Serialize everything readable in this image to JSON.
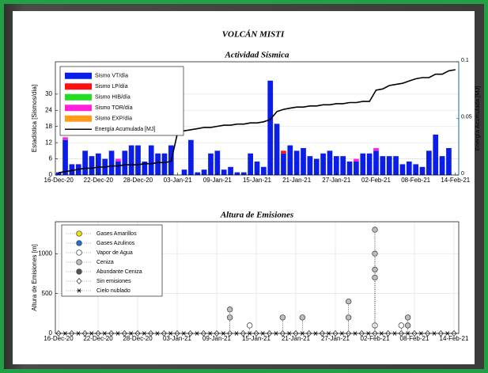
{
  "title": "VOLCÁN MISTI",
  "chart_data": [
    {
      "type": "bar",
      "stacked": true,
      "title": "Actividad Sísmica",
      "ylabel": "Estadística [Sismos/día]",
      "y2label": "Energía Acumulada [MJ]",
      "categories": [
        "16-Dec-20",
        null,
        null,
        null,
        null,
        null,
        "22-Dec-20",
        null,
        null,
        null,
        null,
        null,
        "28-Dec-20",
        null,
        null,
        null,
        null,
        null,
        "03-Jan-21",
        null,
        null,
        null,
        null,
        null,
        "09-Jan-21",
        null,
        null,
        null,
        null,
        null,
        "15-Jan-21",
        null,
        null,
        null,
        null,
        null,
        "21-Jan-21",
        null,
        null,
        null,
        null,
        null,
        "27-Jan-21",
        null,
        null,
        null,
        null,
        null,
        "02-Feb-21",
        null,
        null,
        null,
        null,
        null,
        "08-Feb-21",
        null,
        null,
        null,
        null,
        null,
        "14-Feb-21"
      ],
      "ylim": [
        0,
        42
      ],
      "yticks": [
        0,
        6,
        12,
        18,
        24,
        30
      ],
      "y2lim": [
        0,
        0.1
      ],
      "y2ticks": [
        0,
        0.05,
        0.1
      ],
      "y2color": "#0072bd",
      "grid": true,
      "legend": "upper left",
      "series": [
        {
          "name": "Sismo VT/día",
          "color": "#0a1ee8",
          "values": [
            1,
            13,
            4,
            4,
            9,
            7,
            8,
            6,
            9,
            5,
            9,
            11,
            11,
            5,
            11,
            8,
            8,
            11,
            0,
            2,
            13,
            1,
            2,
            8,
            9,
            2,
            3,
            1,
            1,
            8,
            5,
            3,
            35,
            19,
            8,
            11,
            9,
            10,
            7,
            6,
            8,
            9,
            7,
            7,
            5,
            5,
            8,
            8,
            9,
            7,
            7,
            7,
            4,
            5,
            4,
            3,
            9,
            15,
            7,
            10,
            0
          ]
        },
        {
          "name": "Sismo LP/día",
          "color": "#ff1010",
          "values": [
            0,
            0,
            0,
            0,
            0,
            0,
            0,
            0,
            0,
            0,
            0,
            0,
            0,
            0,
            0,
            0,
            0,
            0,
            0,
            0,
            0,
            0,
            0,
            0,
            0,
            0,
            0,
            0,
            0,
            0,
            0,
            0,
            0,
            0,
            1,
            0,
            0,
            0,
            0,
            0,
            0,
            0,
            0,
            0,
            0,
            0,
            0,
            0,
            0,
            0,
            0,
            0,
            0,
            0,
            0,
            0,
            0,
            0,
            0,
            0,
            0
          ]
        },
        {
          "name": "Sismo HIB/día",
          "color": "#22dd22",
          "values": [
            0,
            0,
            0,
            0,
            0,
            0,
            0,
            0,
            0,
            0,
            0,
            0,
            0,
            0,
            0,
            0,
            0,
            0,
            0,
            0,
            0,
            0,
            0,
            0,
            0,
            0,
            0,
            0,
            0,
            0,
            0,
            0,
            0,
            0,
            0,
            0,
            0,
            0,
            0,
            0,
            0,
            0,
            0,
            0,
            0,
            0,
            0,
            0,
            0,
            0,
            0,
            0,
            0,
            0,
            0,
            0,
            0,
            0,
            0,
            0,
            0
          ]
        },
        {
          "name": "Sismo TOR/día",
          "color": "#ff22dd",
          "values": [
            0,
            1,
            0,
            0,
            0,
            0,
            0,
            0,
            0,
            1,
            0,
            0,
            0,
            0,
            0,
            0,
            0,
            0,
            0,
            0,
            0,
            0,
            0,
            0,
            0,
            0,
            0,
            0,
            0,
            0,
            0,
            0,
            0,
            0,
            0,
            0,
            0,
            0,
            0,
            0,
            0,
            0,
            0,
            0,
            0,
            1,
            0,
            0,
            1,
            0,
            0,
            0,
            0,
            0,
            0,
            0,
            0,
            0,
            0,
            0,
            0
          ]
        },
        {
          "name": "Sismo EXP/día",
          "color": "#ff9a1a",
          "values": [
            0,
            0,
            0,
            0,
            0,
            0,
            0,
            0,
            0,
            0,
            0,
            0,
            0,
            0,
            0,
            0,
            0,
            0,
            0,
            0,
            0,
            0,
            0,
            0,
            0,
            0,
            0,
            0,
            0,
            0,
            0,
            0,
            0,
            0,
            0,
            0,
            0,
            0,
            0,
            0,
            0,
            0,
            0,
            0,
            0,
            0,
            0,
            0,
            0,
            0,
            0,
            0,
            0,
            0,
            0,
            0,
            0,
            0,
            0,
            0,
            0
          ]
        },
        {
          "name": "Energía Acumulada [MJ]",
          "color": "#000000",
          "axis": "y2",
          "values": [
            0.002,
            0.003,
            0.004,
            0.005,
            0.006,
            0.006,
            0.007,
            0.007,
            0.008,
            0.008,
            0.009,
            0.009,
            0.009,
            0.01,
            0.01,
            0.011,
            0.011,
            0.012,
            0.038,
            0.039,
            0.04,
            0.041,
            0.042,
            0.042,
            0.043,
            0.044,
            0.044,
            0.045,
            0.045,
            0.046,
            0.046,
            0.047,
            0.049,
            0.056,
            0.058,
            0.059,
            0.06,
            0.06,
            0.061,
            0.061,
            0.062,
            0.062,
            0.063,
            0.063,
            0.064,
            0.064,
            0.065,
            0.065,
            0.075,
            0.076,
            0.079,
            0.08,
            0.081,
            0.083,
            0.085,
            0.086,
            0.086,
            0.089,
            0.089,
            0.092,
            0.093
          ]
        }
      ]
    },
    {
      "type": "scatter",
      "title": "Altura de Emisiones",
      "ylabel": "Altura de Emisiones [m]",
      "xlim": [
        "16-Dec-20",
        "14-Feb-21"
      ],
      "xticks": [
        "16-Dec-20",
        "22-Dec-20",
        "28-Dec-20",
        "03-Jan-21",
        "09-Jan-21",
        "15-Jan-21",
        "21-Jan-21",
        "27-Jan-21",
        "02-Feb-21",
        "08-Feb-21",
        "14-Feb-21"
      ],
      "ylim": [
        0,
        1400
      ],
      "yticks": [
        0,
        500,
        1000
      ],
      "grid": true,
      "legend": "upper left",
      "series": [
        {
          "name": "Gases Amarillos",
          "color": "#f5e400",
          "marker": "o",
          "x": [],
          "values": []
        },
        {
          "name": "Gases Azulinos",
          "color": "#1f6fd6",
          "marker": "o",
          "x": [],
          "values": []
        },
        {
          "name": "Vapor de Agua",
          "color": "#ffffff",
          "marker": "o",
          "x": [
            "14-Jan-21",
            "02-Feb-21",
            "06-Feb-21"
          ],
          "values": [
            100,
            100,
            100
          ]
        },
        {
          "name": "Ceniza",
          "color": "#bdbdbd",
          "marker": "o",
          "x": [
            "11-Jan-21",
            "11-Jan-21",
            "19-Jan-21",
            "22-Jan-21",
            "29-Jan-21",
            "29-Jan-21",
            "02-Feb-21",
            "02-Feb-21",
            "02-Feb-21",
            "02-Feb-21",
            "07-Feb-21",
            "07-Feb-21"
          ],
          "values": [
            300,
            200,
            200,
            200,
            400,
            200,
            1300,
            1000,
            800,
            700,
            200,
            100
          ]
        },
        {
          "name": "Abundante Ceniza",
          "color": "#555555",
          "marker": "o",
          "x": [],
          "values": []
        },
        {
          "name": "Sin emisiones",
          "color": "#ffffff",
          "marker": "d",
          "x": [
            "16-Dec-20",
            "18-Dec-20",
            "20-Dec-20",
            "22-Dec-20",
            "24-Dec-20",
            "26-Dec-20",
            "28-Dec-20",
            "30-Dec-20",
            "01-Jan-21",
            "03-Jan-21",
            "05-Jan-21",
            "07-Jan-21",
            "09-Jan-21",
            "11-Jan-21",
            "13-Jan-21",
            "15-Jan-21",
            "17-Jan-21",
            "19-Jan-21",
            "21-Jan-21",
            "23-Jan-21",
            "25-Jan-21",
            "27-Jan-21",
            "29-Jan-21",
            "31-Jan-21",
            "02-Feb-21",
            "04-Feb-21",
            "06-Feb-21",
            "08-Feb-21",
            "10-Feb-21",
            "12-Feb-21",
            "14-Feb-21"
          ],
          "values": [
            0,
            0,
            0,
            0,
            0,
            0,
            0,
            0,
            0,
            0,
            0,
            0,
            0,
            0,
            0,
            0,
            0,
            0,
            0,
            0,
            0,
            0,
            0,
            0,
            0,
            0,
            0,
            0,
            0,
            0,
            0
          ]
        },
        {
          "name": "Cielo nublado",
          "color": "#000000",
          "marker": "*",
          "x": [
            "17-Dec-20",
            "19-Dec-20",
            "21-Dec-20",
            "23-Dec-20",
            "25-Dec-20",
            "27-Dec-20",
            "29-Dec-20",
            "31-Dec-20",
            "02-Jan-21",
            "04-Jan-21",
            "06-Jan-21",
            "08-Jan-21",
            "10-Jan-21",
            "12-Jan-21",
            "14-Jan-21",
            "16-Jan-21",
            "18-Jan-21",
            "20-Jan-21",
            "22-Jan-21",
            "24-Jan-21",
            "26-Jan-21",
            "28-Jan-21",
            "30-Jan-21",
            "01-Feb-21",
            "03-Feb-21",
            "05-Feb-21",
            "07-Feb-21",
            "09-Feb-21",
            "11-Feb-21",
            "13-Feb-21"
          ],
          "values": [
            0,
            0,
            0,
            0,
            0,
            0,
            0,
            0,
            0,
            0,
            0,
            0,
            0,
            0,
            0,
            0,
            0,
            0,
            0,
            0,
            0,
            0,
            0,
            0,
            0,
            0,
            0,
            0,
            0,
            0
          ]
        }
      ]
    }
  ]
}
